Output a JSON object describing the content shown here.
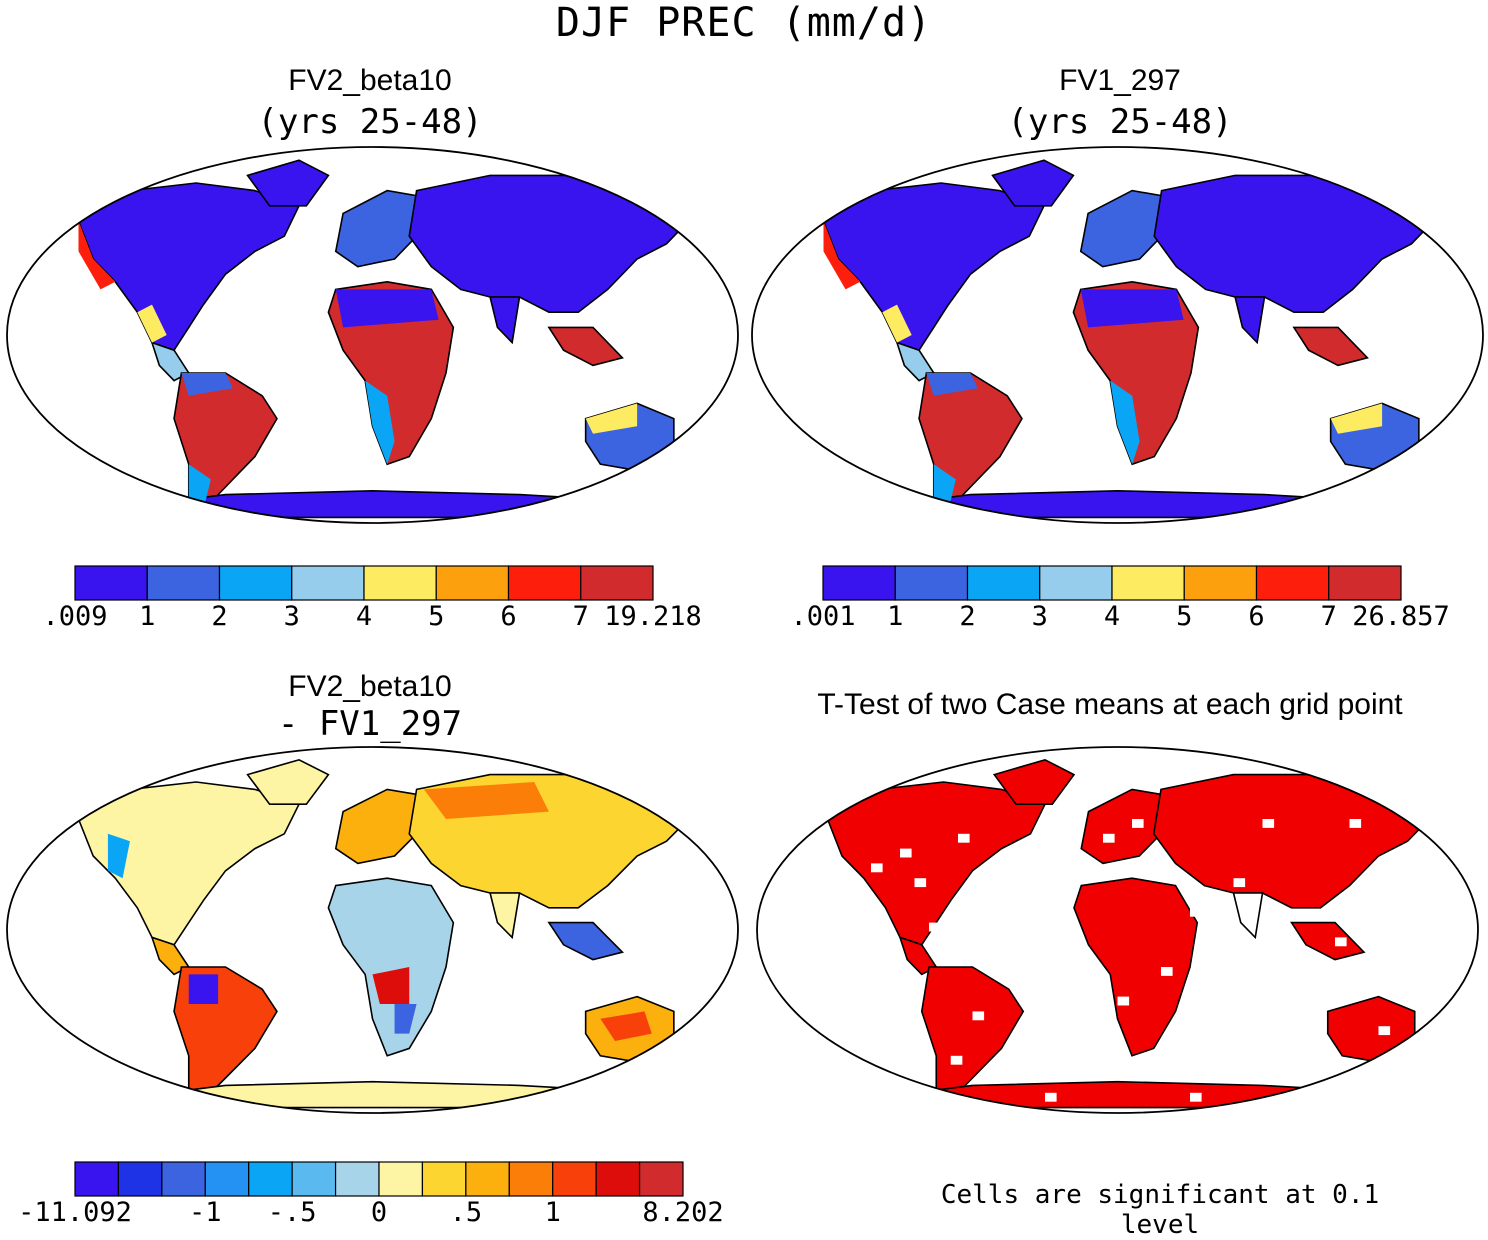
{
  "title": "DJF PREC (mm/d)",
  "colors": {
    "prec": [
      "#3a14ee",
      "#3c64e0",
      "#0aa6f5",
      "#96cdec",
      "#fdec62",
      "#fda00e",
      "#fd1f0b",
      "#d22b2d"
    ],
    "diff": [
      "#3a14ee",
      "#1e32e6",
      "#3c64e0",
      "#2492f3",
      "#0aa6f5",
      "#5ab9ee",
      "#a8d4ea",
      "#fdf5a3",
      "#fcd530",
      "#fbb00e",
      "#fb7e08",
      "#f8400a",
      "#dd0d0b",
      "#d22b2d"
    ],
    "signif": "#f00000"
  },
  "panels": [
    {
      "id": "fv2",
      "title": "FV2_beta10",
      "subtitle": "(yrs 25-48)",
      "colorbar_labels": [
        ".009",
        "1",
        "2",
        "3",
        "4",
        "5",
        "6",
        "7",
        "19.218"
      ]
    },
    {
      "id": "fv1",
      "title": "FV1_297",
      "subtitle": "(yrs 25-48)",
      "colorbar_labels": [
        ".001",
        "1",
        "2",
        "3",
        "4",
        "5",
        "6",
        "7",
        "26.857"
      ]
    },
    {
      "id": "diff",
      "title": "FV2_beta10",
      "subtitle": "- FV1_297",
      "colorbar_labels": [
        "-11.092",
        "-1",
        "-.5",
        "0",
        ".5",
        "1",
        "8.202"
      ]
    },
    {
      "id": "ttest",
      "title": "T-Test of two Case means at each grid point",
      "note": "Cells are significant at 0.1 level"
    }
  ]
}
